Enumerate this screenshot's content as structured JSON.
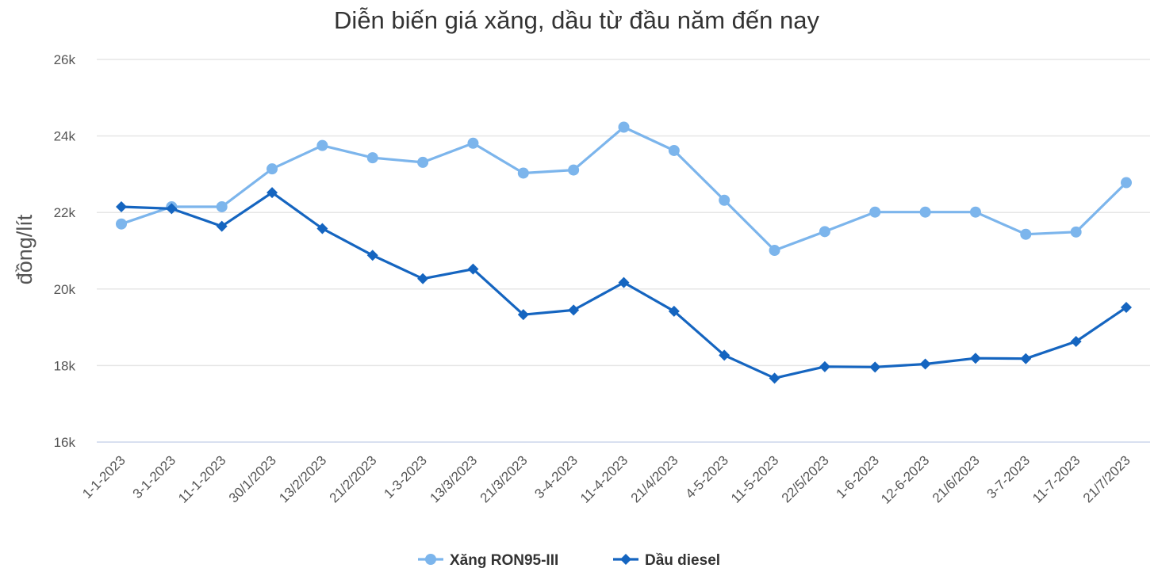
{
  "chart_data": {
    "type": "line",
    "title": "Diễn biến giá xăng, dầu từ đầu năm đến nay",
    "ylabel": "đồng/lít",
    "xlabel": "",
    "ylim": [
      16000,
      26000
    ],
    "yticks": [
      16000,
      18000,
      20000,
      22000,
      24000,
      26000
    ],
    "ytick_labels": [
      "16k",
      "18k",
      "20k",
      "22k",
      "24k",
      "26k"
    ],
    "grid": true,
    "legend": "bottom-center",
    "categories": [
      "1-1-2023",
      "3-1-2023",
      "11-1-2023",
      "30/1/2023",
      "13/2/2023",
      "21/2/2023",
      "1-3-2023",
      "13/3/2023",
      "21/3/2023",
      "3-4-2023",
      "11-4-2023",
      "21/4/2023",
      "4-5-2023",
      "11-5-2023",
      "22/5/2023",
      "1-6-2023",
      "12-6-2023",
      "21/6/2023",
      "3-7-2023",
      "11-7-2023",
      "21/7/2023"
    ],
    "series": [
      {
        "name": "Xăng RON95-III",
        "color": "#7cb5ec",
        "marker": "circle",
        "values": [
          21700,
          22150,
          22150,
          23140,
          23750,
          23430,
          23310,
          23810,
          23030,
          23110,
          24230,
          23620,
          22320,
          21010,
          21500,
          22010,
          22010,
          22010,
          21430,
          21490,
          22780
        ]
      },
      {
        "name": "Dầu diesel",
        "color": "#1565c0",
        "marker": "diamond",
        "values": [
          22150,
          22100,
          21640,
          22520,
          21580,
          20880,
          20270,
          20520,
          19330,
          19450,
          20170,
          19420,
          18270,
          17670,
          17970,
          17960,
          18040,
          18190,
          18180,
          18630,
          19520
        ]
      }
    ]
  }
}
